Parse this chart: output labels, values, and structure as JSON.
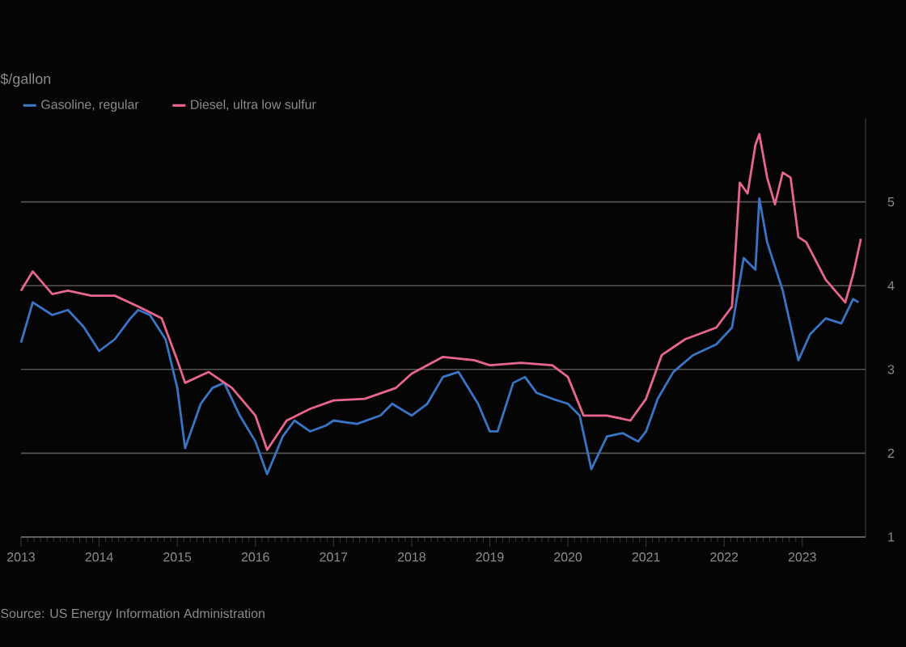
{
  "chart_data": {
    "type": "line",
    "ylabel": "$/gallon",
    "xlim": [
      2013,
      2023.81
    ],
    "xticks": [
      2013,
      2014,
      2015,
      2016,
      2017,
      2018,
      2019,
      2020,
      2021,
      2022,
      2023
    ],
    "ylim": [
      1,
      6
    ],
    "yticks": [
      1,
      2,
      3,
      4,
      5
    ],
    "grid": "y",
    "legend": "top left",
    "marker": "none",
    "line_style": "solid",
    "series": [
      {
        "name": "Gasoline, regular",
        "color": "#3a74c4",
        "x": [
          2013.0,
          2013.15,
          2013.4,
          2013.6,
          2013.8,
          2014.0,
          2014.2,
          2014.4,
          2014.5,
          2014.65,
          2014.85,
          2015.0,
          2015.1,
          2015.3,
          2015.45,
          2015.6,
          2015.8,
          2016.0,
          2016.15,
          2016.35,
          2016.5,
          2016.7,
          2016.9,
          2017.0,
          2017.3,
          2017.6,
          2017.75,
          2018.0,
          2018.2,
          2018.4,
          2018.6,
          2018.85,
          2019.0,
          2019.1,
          2019.3,
          2019.45,
          2019.6,
          2019.8,
          2020.0,
          2020.15,
          2020.3,
          2020.5,
          2020.7,
          2020.9,
          2021.0,
          2021.15,
          2021.35,
          2021.6,
          2021.9,
          2022.1,
          2022.25,
          2022.4,
          2022.45,
          2022.55,
          2022.75,
          2022.95,
          2023.1,
          2023.3,
          2023.5,
          2023.65,
          2023.72
        ],
        "values": [
          3.32,
          3.8,
          3.65,
          3.71,
          3.51,
          3.22,
          3.36,
          3.61,
          3.71,
          3.65,
          3.36,
          2.78,
          2.06,
          2.59,
          2.78,
          2.84,
          2.45,
          2.14,
          1.75,
          2.2,
          2.39,
          2.26,
          2.33,
          2.39,
          2.35,
          2.45,
          2.59,
          2.45,
          2.59,
          2.91,
          2.97,
          2.59,
          2.26,
          2.26,
          2.84,
          2.91,
          2.72,
          2.65,
          2.59,
          2.45,
          1.81,
          2.2,
          2.24,
          2.14,
          2.26,
          2.65,
          2.97,
          3.17,
          3.3,
          3.5,
          4.33,
          4.19,
          5.04,
          4.52,
          3.94,
          3.11,
          3.42,
          3.61,
          3.55,
          3.84,
          3.8
        ]
      },
      {
        "name": "Diesel, ultra low sulfur",
        "color": "#e8658e",
        "x": [
          2013.0,
          2013.15,
          2013.4,
          2013.6,
          2013.9,
          2014.2,
          2014.5,
          2014.8,
          2015.0,
          2015.1,
          2015.4,
          2015.7,
          2016.0,
          2016.15,
          2016.4,
          2016.7,
          2017.0,
          2017.4,
          2017.8,
          2018.0,
          2018.4,
          2018.8,
          2019.0,
          2019.4,
          2019.8,
          2020.0,
          2020.2,
          2020.5,
          2020.8,
          2021.0,
          2021.2,
          2021.5,
          2021.9,
          2022.1,
          2022.2,
          2022.3,
          2022.4,
          2022.45,
          2022.55,
          2022.65,
          2022.75,
          2022.85,
          2022.95,
          2023.05,
          2023.3,
          2023.55,
          2023.65,
          2023.75
        ],
        "values": [
          3.94,
          4.17,
          3.9,
          3.94,
          3.88,
          3.88,
          3.75,
          3.61,
          3.11,
          2.84,
          2.97,
          2.78,
          2.45,
          2.04,
          2.39,
          2.53,
          2.63,
          2.65,
          2.78,
          2.95,
          3.15,
          3.11,
          3.05,
          3.08,
          3.05,
          2.91,
          2.45,
          2.45,
          2.39,
          2.65,
          3.17,
          3.36,
          3.5,
          3.75,
          5.23,
          5.1,
          5.68,
          5.81,
          5.29,
          4.97,
          5.35,
          5.29,
          4.58,
          4.52,
          4.07,
          3.8,
          4.13,
          4.56
        ]
      }
    ],
    "annotations": [
      "Source: US Energy Information Administration"
    ]
  }
}
